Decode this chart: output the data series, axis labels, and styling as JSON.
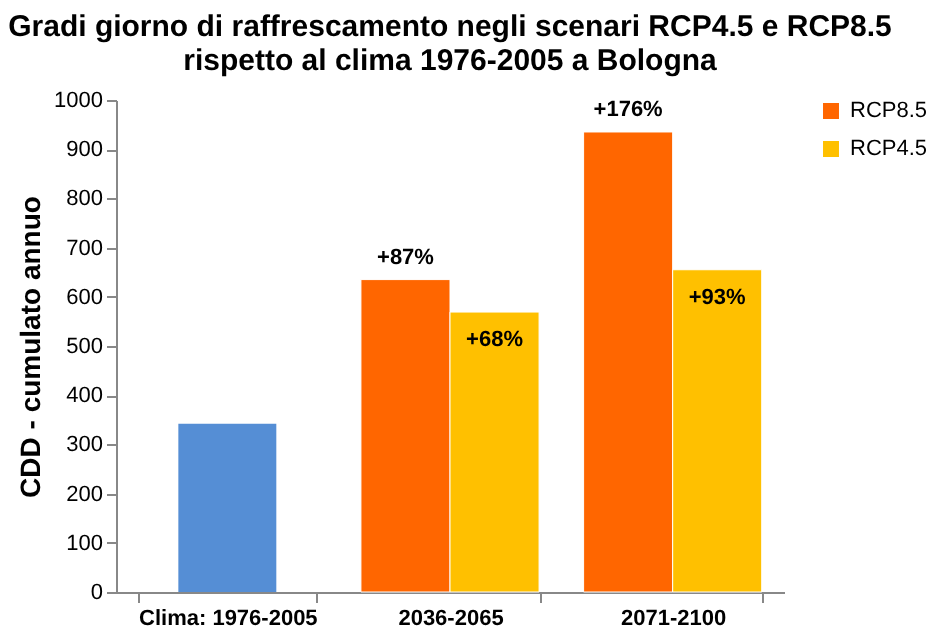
{
  "chart_data": {
    "type": "bar",
    "title": "Gradi giorno di raffrescamento negli scenari RCP4.5 e RCP8.5 rispetto al clima 1976-2005 a Bologna",
    "ylabel": "CDD - cumulato annuo",
    "categories": [
      "Clima: 1976-2005",
      "2036-2065",
      "2071-2100"
    ],
    "series": [
      {
        "color": "#558ed5",
        "values": [
          342,
          null,
          null
        ]
      },
      {
        "name": "RCP8.5",
        "color": "#ff6600",
        "values": [
          null,
          635,
          935
        ]
      },
      {
        "name": "RCP4.5",
        "color": "#ffc000",
        "values": [
          null,
          569,
          655
        ]
      }
    ],
    "annotations": [
      {
        "text": "+87%",
        "x": "2036-2065",
        "y": 635
      },
      {
        "text": "+176%",
        "x": "2071-2100",
        "y": 935
      },
      {
        "text": "+68%",
        "x": "2036-2065",
        "y": 569
      },
      {
        "text": "+93%",
        "x": "2071-2100",
        "y": 655
      }
    ],
    "ylim": [
      0,
      1000
    ],
    "yticks": [
      0,
      100,
      200,
      300,
      400,
      500,
      600,
      700,
      800,
      900,
      1000
    ],
    "grid": false,
    "legend": "right"
  }
}
